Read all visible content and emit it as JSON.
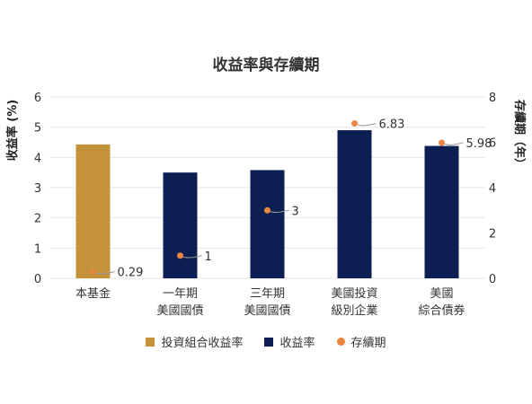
{
  "colors": {
    "fund_bar": "#C39239",
    "yield_bar": "#0D1F52",
    "duration_marker": "#E8853F",
    "grid": "#E6E6E6"
  },
  "chart_data": {
    "type": "bar",
    "title": "收益率與存續期",
    "categories": [
      [
        "本基金"
      ],
      [
        "一年期",
        "美國國債"
      ],
      [
        "三年期",
        "美國國債"
      ],
      [
        "美國投資",
        "級別企業"
      ],
      [
        "美國",
        "綜合債券"
      ]
    ],
    "series": [
      {
        "name": "投資組合收益率",
        "axis": "left",
        "values": [
          4.43,
          null,
          null,
          null,
          null
        ]
      },
      {
        "name": "收益率",
        "axis": "left",
        "values": [
          null,
          3.5,
          3.58,
          4.9,
          4.38
        ]
      },
      {
        "name": "存續期",
        "axis": "right",
        "kind": "scatter",
        "values": [
          0.29,
          1,
          3,
          6.83,
          5.98
        ]
      }
    ],
    "data_labels": [
      "0.29",
      "1",
      "3",
      "6.83",
      "5.98"
    ],
    "ylabel": "收益率 (%)",
    "y2label": "存續期（年）",
    "ylim": [
      0,
      6
    ],
    "y2lim": [
      0,
      8
    ],
    "yticks": [
      "0",
      "1",
      "2",
      "3",
      "4",
      "5",
      "6"
    ],
    "y2ticks": [
      "0",
      "2",
      "4",
      "6",
      "8"
    ],
    "grid": true,
    "legend_position": "bottom"
  }
}
